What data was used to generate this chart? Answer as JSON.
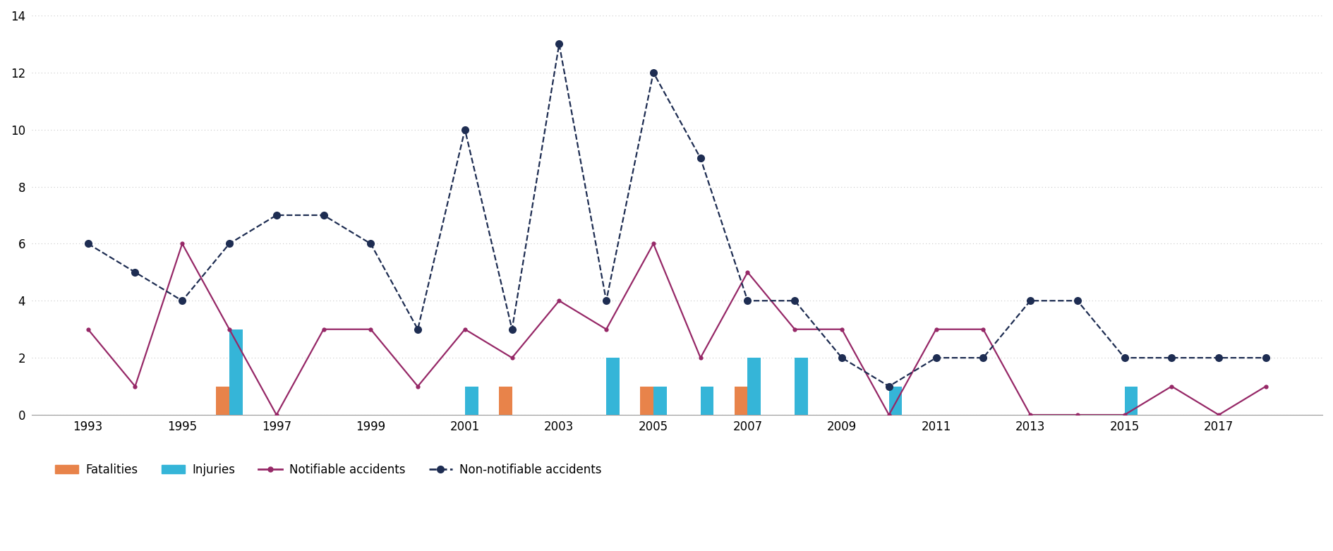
{
  "years": [
    1993,
    1994,
    1995,
    1996,
    1997,
    1998,
    1999,
    2000,
    2001,
    2002,
    2003,
    2004,
    2005,
    2006,
    2007,
    2008,
    2009,
    2010,
    2011,
    2012,
    2013,
    2014,
    2015,
    2016,
    2017,
    2018
  ],
  "notifiable": [
    3,
    1,
    6,
    3,
    0,
    3,
    3,
    1,
    3,
    2,
    4,
    3,
    6,
    2,
    5,
    3,
    3,
    0,
    3,
    3,
    0,
    0,
    0,
    1,
    0,
    1
  ],
  "non_notifiable": [
    6,
    5,
    4,
    6,
    7,
    7,
    6,
    3,
    10,
    3,
    13,
    4,
    12,
    9,
    4,
    4,
    2,
    1,
    2,
    2,
    4,
    4,
    2,
    2,
    2,
    2
  ],
  "fatalities": [
    0,
    0,
    0,
    1,
    0,
    0,
    0,
    0,
    0,
    1,
    0,
    0,
    1,
    0,
    1,
    0,
    0,
    0,
    0,
    0,
    0,
    0,
    0,
    0,
    0,
    0
  ],
  "injuries": [
    0,
    0,
    0,
    3,
    0,
    0,
    0,
    0,
    1,
    0,
    0,
    2,
    1,
    1,
    2,
    2,
    0,
    1,
    0,
    0,
    0,
    0,
    1,
    0,
    0,
    0
  ],
  "color_notifiable": "#962867",
  "color_non_notifiable": "#1e2d52",
  "color_fatalities": "#e8834a",
  "color_injuries": "#35b5d8",
  "ylim": [
    0,
    14
  ],
  "yticks": [
    0,
    2,
    4,
    6,
    8,
    10,
    12,
    14
  ],
  "xtick_labels": [
    "1993",
    "1995",
    "1997",
    "1999",
    "2001",
    "2003",
    "2005",
    "2007",
    "2009",
    "2011",
    "2013",
    "2015",
    "2017"
  ],
  "xtick_positions": [
    1993,
    1995,
    1997,
    1999,
    2001,
    2003,
    2005,
    2007,
    2009,
    2011,
    2013,
    2015,
    2017
  ],
  "background_color": "#ffffff",
  "grid_color": "#c8c8c8",
  "legend_items": [
    "Fatalities",
    "Injuries",
    "Notifiable accidents",
    "Non-notifiable accidents"
  ],
  "bar_width": 0.28
}
